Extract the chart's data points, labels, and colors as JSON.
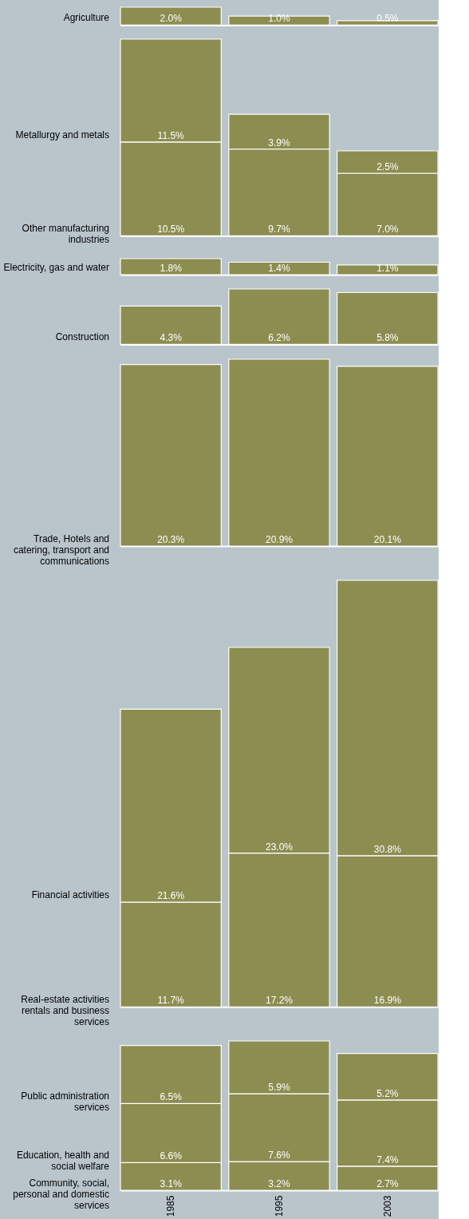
{
  "chart_data": [
    {
      "type": "bar",
      "stacked": true,
      "categories": [
        "1985",
        "1995",
        "2003"
      ],
      "tick_labels": false,
      "series": [
        {
          "name": "Agriculture",
          "color": "#8c8d50",
          "values": [
            2.0,
            1.0,
            0.5
          ],
          "value_labels": [
            "2.0%",
            "1.0%",
            "0.5%"
          ]
        }
      ]
    },
    {
      "type": "bar",
      "stacked": true,
      "categories": [
        "1985",
        "1995",
        "2003"
      ],
      "tick_labels": false,
      "series": [
        {
          "name": "Other manufacturing industries",
          "color": "#8c8d50",
          "values": [
            10.5,
            9.7,
            7.0
          ],
          "value_labels": [
            "10.5%",
            "9.7%",
            "7.0%"
          ]
        },
        {
          "name": "Metallurgy and metals",
          "color": "#8c8d50",
          "values": [
            11.5,
            3.9,
            2.5
          ],
          "value_labels": [
            "11.5%",
            "3.9%",
            "2.5%"
          ]
        }
      ]
    },
    {
      "type": "bar",
      "stacked": true,
      "categories": [
        "1985",
        "1995",
        "2003"
      ],
      "tick_labels": false,
      "series": [
        {
          "name": "Electricity, gas and water",
          "color": "#8c8d50",
          "values": [
            1.8,
            1.4,
            1.1
          ],
          "value_labels": [
            "1.8%",
            "1.4%",
            "1.1%"
          ]
        }
      ]
    },
    {
      "type": "bar",
      "stacked": true,
      "categories": [
        "1985",
        "1995",
        "2003"
      ],
      "tick_labels": false,
      "series": [
        {
          "name": "Construction",
          "color": "#8c8d50",
          "values": [
            4.3,
            6.2,
            5.8
          ],
          "value_labels": [
            "4.3%",
            "6.2%",
            "5.8%"
          ]
        }
      ]
    },
    {
      "type": "bar",
      "stacked": true,
      "categories": [
        "1985",
        "1995",
        "2003"
      ],
      "tick_labels": false,
      "series": [
        {
          "name": "Trade, Hotels and catering, transport and communications",
          "color": "#8c8d50",
          "values": [
            20.3,
            20.9,
            20.1
          ],
          "value_labels": [
            "20.3%",
            "20.9%",
            "20.1%"
          ]
        }
      ]
    },
    {
      "type": "bar",
      "stacked": true,
      "categories": [
        "1985",
        "1995",
        "2003"
      ],
      "tick_labels": false,
      "series": [
        {
          "name": "Real-estate activities rentals and business services",
          "color": "#8c8d50",
          "values": [
            11.7,
            17.2,
            16.9
          ],
          "value_labels": [
            "11.7%",
            "17.2%",
            "16.9%"
          ]
        },
        {
          "name": "Financial activities",
          "color": "#8c8d50",
          "values": [
            21.6,
            23.0,
            30.8
          ],
          "value_labels": [
            "21.6%",
            "23.0%",
            "30.8%"
          ]
        }
      ]
    },
    {
      "type": "bar",
      "stacked": true,
      "categories": [
        "1985",
        "1995",
        "2003"
      ],
      "tick_labels": "x",
      "series": [
        {
          "name": "Community, social, personal and domestic services",
          "color": "#8c8d50",
          "values": [
            3.1,
            3.2,
            2.7
          ],
          "value_labels": [
            "3.1%",
            "3.2%",
            "2.7%"
          ]
        },
        {
          "name": "Education, health and social welfare",
          "color": "#8c8d50",
          "values": [
            6.6,
            7.6,
            7.4
          ],
          "value_labels": [
            "6.6%",
            "7.6%",
            "7.4%"
          ]
        },
        {
          "name": "Public administration services",
          "color": "#8c8d50",
          "values": [
            6.5,
            5.9,
            5.2
          ],
          "value_labels": [
            "6.5%",
            "5.9%",
            "5.2%"
          ]
        }
      ]
    }
  ]
}
